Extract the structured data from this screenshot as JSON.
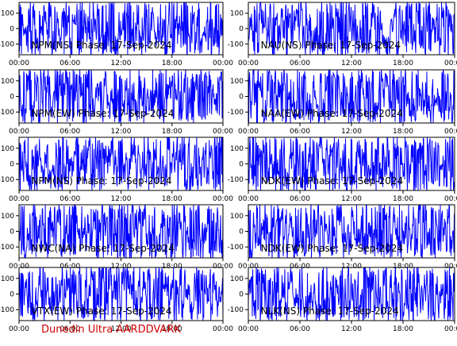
{
  "chart_data": [
    {
      "type": "line",
      "title": "NPM(NS) Phase: 17-Sep-2024",
      "x": [
        "00:00",
        "06:00",
        "12:00",
        "18:00",
        "00:00"
      ],
      "y_ticks": [
        100,
        0,
        -100
      ],
      "ylim": [
        -170,
        170
      ],
      "grid": false,
      "series_color": "#0000ff",
      "noise_seed": 11
    },
    {
      "type": "line",
      "title": "NAU(NS) Phase: 17-Sep-2024",
      "x": [
        "00:00",
        "06:00",
        "12:00",
        "18:00",
        "00:00"
      ],
      "y_ticks": [
        100,
        0,
        -100
      ],
      "ylim": [
        -170,
        170
      ],
      "grid": false,
      "series_color": "#0000ff",
      "noise_seed": 23
    },
    {
      "type": "line",
      "title": "NPM(EW) Phase: 17-Sep-2024",
      "x": [
        "00:00",
        "06:00",
        "12:00",
        "18:00",
        "00:00"
      ],
      "y_ticks": [
        100,
        0,
        -100
      ],
      "ylim": [
        -170,
        170
      ],
      "grid": false,
      "series_color": "#0000ff",
      "noise_seed": 37
    },
    {
      "type": "line",
      "title": "NAA(EW) Phase: 17-Sep-2024",
      "x": [
        "00:00",
        "06:00",
        "12:00",
        "18:00",
        "00:00"
      ],
      "y_ticks": [
        100,
        0,
        -100
      ],
      "ylim": [
        -170,
        170
      ],
      "grid": false,
      "series_color": "#0000ff",
      "noise_seed": 41
    },
    {
      "type": "line",
      "title": "NPM(NS) Phase: 17-Sep-2024",
      "x": [
        "00:00",
        "06:00",
        "12:00",
        "18:00",
        "00:00"
      ],
      "y_ticks": [
        100,
        0,
        -100
      ],
      "ylim": [
        -170,
        170
      ],
      "grid": false,
      "series_color": "#0000ff",
      "noise_seed": 53
    },
    {
      "type": "line",
      "title": "NDK(EW) Phase: 17-Sep-2024",
      "x": [
        "00:00",
        "06:00",
        "12:00",
        "18:00",
        "00:00"
      ],
      "y_ticks": [
        100,
        0,
        -100
      ],
      "ylim": [
        -170,
        170
      ],
      "grid": false,
      "series_color": "#0000ff",
      "noise_seed": 67
    },
    {
      "type": "line",
      "title": "NWC(NA) Phase: 17-Sep-2024",
      "x": [
        "00:00",
        "06:00",
        "12:00",
        "18:00",
        "00:00"
      ],
      "y_ticks": [
        100,
        0,
        -100
      ],
      "ylim": [
        -170,
        170
      ],
      "grid": false,
      "series_color": "#0000ff",
      "noise_seed": 71
    },
    {
      "type": "line",
      "title": "NDK(EW) Phase: 17-Sep-2024",
      "x": [
        "00:00",
        "06:00",
        "12:00",
        "18:00",
        "00:00"
      ],
      "y_ticks": [
        100,
        0,
        -100
      ],
      "ylim": [
        -170,
        170
      ],
      "grid": false,
      "series_color": "#0000ff",
      "noise_seed": 83
    },
    {
      "type": "line",
      "title": "VTX(EW) Phase: 17-Sep-2024",
      "x": [
        "00:00",
        "06:00",
        "12:00",
        "18:00",
        "00:00"
      ],
      "y_ticks": [
        100,
        0,
        -100
      ],
      "ylim": [
        -170,
        170
      ],
      "grid": false,
      "series_color": "#0000ff",
      "noise_seed": 97
    },
    {
      "type": "line",
      "title": "NLK(NS) Phase: 17-Sep-2024",
      "x": [
        "00:00",
        "06:00",
        "12:00",
        "18:00",
        "00:00"
      ],
      "y_ticks": [
        100,
        0,
        -100
      ],
      "ylim": [
        -170,
        170
      ],
      "grid": false,
      "series_color": "#0000ff",
      "noise_seed": 101
    }
  ],
  "footer": {
    "credit": "Dunedin Ultra AARDDVARK",
    "credit_color": "#cc0000"
  }
}
